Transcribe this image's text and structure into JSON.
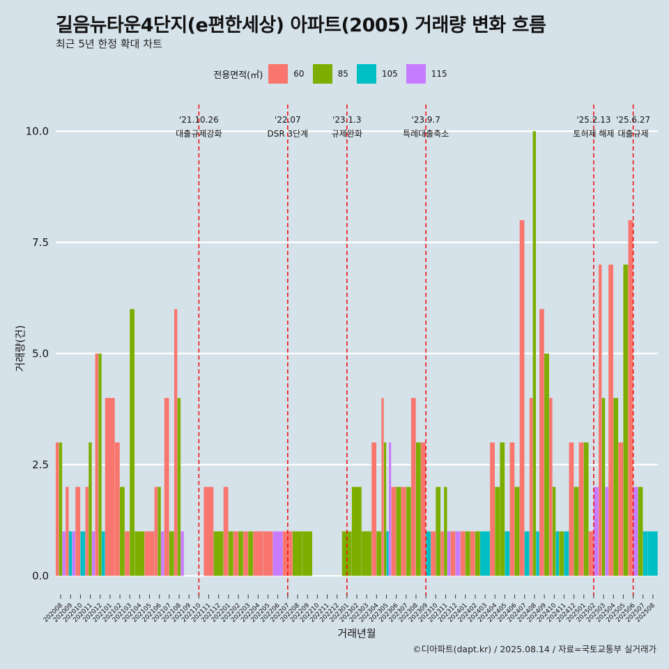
{
  "header": {
    "title": "길음뉴타운4단지(e편한세상) 아파트(2005) 거래량 변화 흐름",
    "subtitle": "최근 5년 한정 확대 차트"
  },
  "legend": {
    "title": "전용면적(㎡)",
    "items": [
      {
        "label": "60",
        "color": "#f8766d"
      },
      {
        "label": "85",
        "color": "#7cae00"
      },
      {
        "label": "105",
        "color": "#00bfc4"
      },
      {
        "label": "115",
        "color": "#c77cff"
      }
    ]
  },
  "caption": "©디아파트(dapt.kr) / 2025.08.14 / 자료=국토교통부 실거래가",
  "chart_data": {
    "type": "bar",
    "xlabel": "거래년월",
    "ylabel": "거래량(건)",
    "ylim": [
      -0.45,
      10.6
    ],
    "yticks": [
      0.0,
      2.5,
      5.0,
      7.5,
      10.0
    ],
    "ytick_labels": [
      "0.0",
      "2.5",
      "5.0",
      "7.5",
      "10.0"
    ],
    "categories": [
      "202008",
      "202009",
      "202010",
      "202011",
      "202012",
      "202101",
      "202102",
      "202103",
      "202104",
      "202105",
      "202106",
      "202107",
      "202108",
      "202109",
      "202110",
      "202111",
      "202112",
      "202201",
      "202202",
      "202203",
      "202204",
      "202205",
      "202206",
      "202207",
      "202208",
      "202209",
      "202210",
      "202211",
      "202212",
      "202301",
      "202302",
      "202303",
      "202304",
      "202305",
      "202306",
      "202307",
      "202308",
      "202309",
      "202310",
      "202311",
      "202312",
      "202401",
      "202402",
      "202403",
      "202404",
      "202405",
      "202406",
      "202407",
      "202408",
      "202409",
      "202410",
      "202411",
      "202412",
      "202501",
      "202502",
      "202503",
      "202504",
      "202505",
      "202506",
      "202507",
      "202508"
    ],
    "series": [
      {
        "name": "60",
        "color": "#f8766d",
        "values": [
          3,
          2,
          2,
          2,
          5,
          4,
          3,
          1,
          0,
          1,
          2,
          4,
          6,
          0,
          0,
          2,
          0,
          2,
          1,
          1,
          1,
          1,
          0,
          1,
          0,
          0,
          0,
          0,
          0,
          0,
          0,
          0,
          3,
          4,
          2,
          2,
          4,
          3,
          1,
          1,
          1,
          1,
          1,
          0,
          3,
          0,
          3,
          8,
          4,
          6,
          4,
          0,
          3,
          3,
          1,
          7,
          7,
          3,
          8,
          0,
          0
        ]
      },
      {
        "name": "85",
        "color": "#7cae00",
        "values": [
          3,
          0,
          0,
          3,
          5,
          0,
          2,
          6,
          1,
          0,
          2,
          1,
          4,
          0,
          0,
          0,
          1,
          1,
          1,
          1,
          0,
          0,
          0,
          0,
          1,
          1,
          0,
          0,
          0,
          1,
          2,
          1,
          1,
          3,
          2,
          2,
          3,
          0,
          2,
          2,
          0,
          1,
          1,
          0,
          2,
          3,
          2,
          0,
          10,
          5,
          2,
          1,
          2,
          3,
          0,
          4,
          4,
          7,
          0,
          2,
          0
        ]
      },
      {
        "name": "105",
        "color": "#00bfc4",
        "values": [
          0,
          1,
          1,
          0,
          1,
          0,
          0,
          0,
          0,
          0,
          0,
          0,
          0,
          0,
          0,
          0,
          0,
          0,
          0,
          0,
          0,
          0,
          0,
          0,
          0,
          0,
          0,
          0,
          0,
          0,
          0,
          0,
          0,
          1,
          0,
          0,
          0,
          1,
          0,
          0,
          0,
          0,
          0,
          1,
          0,
          1,
          0,
          1,
          1,
          0,
          1,
          1,
          0,
          0,
          0,
          0,
          0,
          0,
          0,
          1,
          1
        ]
      },
      {
        "name": "115",
        "color": "#c77cff",
        "values": [
          1,
          1,
          0,
          1,
          0,
          0,
          0,
          0,
          0,
          0,
          1,
          0,
          1,
          0,
          0,
          0,
          0,
          0,
          0,
          0,
          0,
          0,
          1,
          0,
          0,
          0,
          0,
          0,
          0,
          0,
          0,
          0,
          0,
          3,
          0,
          0,
          0,
          0,
          0,
          1,
          1,
          0,
          0,
          0,
          0,
          0,
          0,
          0,
          0,
          0,
          0,
          0,
          0,
          0,
          2,
          2,
          0,
          0,
          2,
          0,
          0
        ]
      }
    ],
    "events": [
      {
        "category": "202110",
        "date": "'21.10.26",
        "label": "대출규제강화"
      },
      {
        "category": "202207",
        "date": "'22.07",
        "label": "DSR 3단계"
      },
      {
        "category": "202301",
        "date": "'23.1.3",
        "label": "규제완화"
      },
      {
        "category": "202309",
        "date": "'23.9.7",
        "label": "특례대출축소"
      },
      {
        "category": "202502",
        "date": "'25.2.13",
        "label": "토허제 해제"
      },
      {
        "category": "202506",
        "date": "'25.6.27",
        "label": "대출규제"
      }
    ]
  }
}
